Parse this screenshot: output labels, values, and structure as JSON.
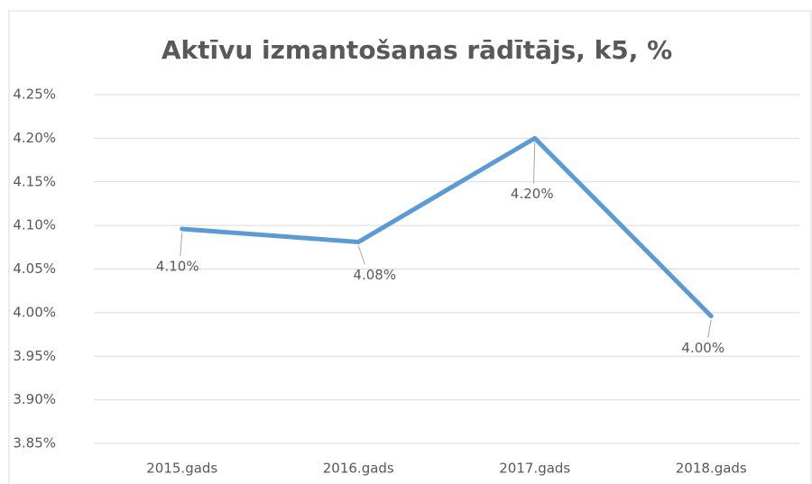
{
  "chart_data": {
    "type": "line",
    "title": "Aktīvu izmantošanas rādītājs, k5, %",
    "categories": [
      "2015.gads",
      "2016.gads",
      "2017.gads",
      "2018.gads"
    ],
    "series": [
      {
        "name": "k5",
        "color": "#5b9bd5",
        "values": [
          4.096,
          4.081,
          4.2,
          3.996
        ],
        "value_labels": [
          "4.10%",
          "4.08%",
          "4.20%",
          "4.00%"
        ]
      }
    ],
    "ylim": [
      3.85,
      4.25
    ],
    "yticks": [
      {
        "value": 3.85,
        "label": "3.85%"
      },
      {
        "value": 3.9,
        "label": "3.90%"
      },
      {
        "value": 3.95,
        "label": "3.95%"
      },
      {
        "value": 4,
        "label": "4.00%"
      },
      {
        "value": 4.05,
        "label": "4.05%"
      },
      {
        "value": 4.1,
        "label": "4.10%"
      },
      {
        "value": 4.15,
        "label": "4.15%"
      },
      {
        "value": 4.2,
        "label": "4.20%"
      },
      {
        "value": 4.25,
        "label": "4.25%"
      }
    ],
    "grid": true
  }
}
